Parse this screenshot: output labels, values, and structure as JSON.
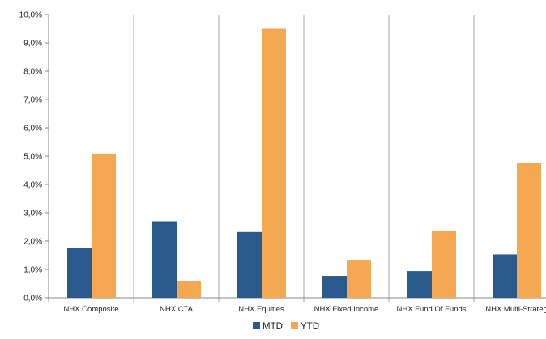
{
  "chart_data": {
    "type": "bar",
    "categories": [
      "NHX Composite",
      "NHX CTA",
      "NHX Equities",
      "NHX Fixed Income",
      "NHX Fund Of Funds",
      "NHX Multi-Strateg"
    ],
    "series": [
      {
        "name": "MTD",
        "values": [
          1.75,
          2.7,
          2.32,
          0.77,
          0.94,
          1.53
        ],
        "color": "#2a5a8c"
      },
      {
        "name": "YTD",
        "values": [
          5.09,
          0.6,
          9.5,
          1.34,
          2.37,
          4.76
        ],
        "color": "#f4a852"
      }
    ],
    "yticks": [
      "0,0%",
      "1,0%",
      "2,0%",
      "3,0%",
      "4,0%",
      "5,0%",
      "6,0%",
      "7,0%",
      "8,0%",
      "9,0%",
      "10,0%"
    ],
    "ylim": [
      0,
      10
    ],
    "grid": "vertical category separators",
    "legend": "bottom-center",
    "title": "",
    "xlabel": "",
    "ylabel": ""
  }
}
